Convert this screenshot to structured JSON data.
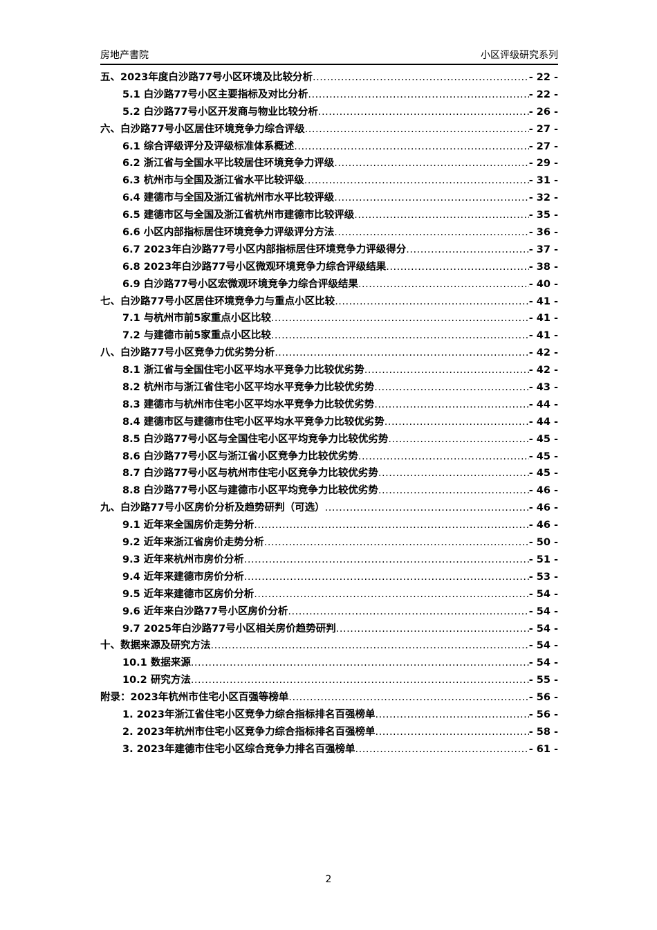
{
  "header": {
    "left": "房地产書院",
    "right": "小区评级研究系列"
  },
  "toc": [
    {
      "level": 1,
      "text": "五、2023年度白沙路77号小区环境及比较分析",
      "page": "- 22 -"
    },
    {
      "level": 2,
      "text": "5.1 白沙路77号小区主要指标及对比分析",
      "page": "- 22 -"
    },
    {
      "level": 2,
      "text": "5.2 白沙路77号小区开发商与物业比较分析",
      "page": "- 26 -"
    },
    {
      "level": 1,
      "text": "六、白沙路77号小区居住环境竞争力综合评级",
      "page": "- 27 -"
    },
    {
      "level": 2,
      "text": "6.1 综合评级评分及评级标准体系概述",
      "page": "- 27 -"
    },
    {
      "level": 2,
      "text": "6.2 浙江省与全国水平比较居住环境竞争力评级",
      "page": "- 29 -"
    },
    {
      "level": 2,
      "text": "6.3 杭州市与全国及浙江省水平比较评级",
      "page": "- 31 -"
    },
    {
      "level": 2,
      "text": "6.4 建德市与全国及浙江省杭州市水平比较评级",
      "page": "- 32 -"
    },
    {
      "level": 2,
      "text": "6.5 建德市区与全国及浙江省杭州市建德市比较评级",
      "page": "- 35 -"
    },
    {
      "level": 2,
      "text": "6.6 小区内部指标居住环境竞争力评级评分方法",
      "page": "- 36 -"
    },
    {
      "level": 2,
      "text": "6.7 2023年白沙路77号小区内部指标居住环境竞争力评级得分",
      "page": "- 37 -"
    },
    {
      "level": 2,
      "text": "6.8 2023年白沙路77号小区微观环境竞争力综合评级结果",
      "page": "- 38 -"
    },
    {
      "level": 2,
      "text": "6.9 白沙路77号小区宏微观环境竞争力综合评级结果",
      "page": "- 40 -"
    },
    {
      "level": 1,
      "text": "七、白沙路77号小区居住环境竞争力与重点小区比较",
      "page": "- 41 -"
    },
    {
      "level": 2,
      "text": "7.1 与杭州市前5家重点小区比较",
      "page": "- 41 -"
    },
    {
      "level": 2,
      "text": "7.2 与建德市前5家重点小区比较",
      "page": "- 41 -"
    },
    {
      "level": 1,
      "text": "八、白沙路77号小区竞争力优劣势分析",
      "page": "- 42 -"
    },
    {
      "level": 2,
      "text": "8.1 浙江省与全国住宅小区平均水平竞争力比较优劣势",
      "page": "- 42 -"
    },
    {
      "level": 2,
      "text": "8.2 杭州市与浙江省住宅小区平均水平竞争力比较优劣势",
      "page": "- 43 -"
    },
    {
      "level": 2,
      "text": "8.3 建德市与杭州市住宅小区平均水平竞争力比较优劣势",
      "page": "- 44 -"
    },
    {
      "level": 2,
      "text": "8.4 建德市区与建德市住宅小区平均水平竞争力比较优劣势",
      "page": "- 44 -"
    },
    {
      "level": 2,
      "text": "8.5 白沙路77号小区与全国住宅小区平均竞争力比较优劣势",
      "page": "- 45 -"
    },
    {
      "level": 2,
      "text": "8.6 白沙路77号小区与浙江省小区竞争力比较优劣势",
      "page": "- 45 -"
    },
    {
      "level": 2,
      "text": "8.7 白沙路77号小区与杭州市住宅小区竞争力比较优劣势",
      "page": "- 45 -"
    },
    {
      "level": 2,
      "text": "8.8 白沙路77号小区与建德市小区平均竞争力比较优劣势",
      "page": "- 46 -"
    },
    {
      "level": 1,
      "text": "九、白沙路77号小区房价分析及趋势研判（可选）",
      "page": "- 46 -"
    },
    {
      "level": 2,
      "text": "9.1 近年来全国房价走势分析",
      "page": "- 46 -"
    },
    {
      "level": 2,
      "text": "9.2 近年来浙江省房价走势分析",
      "page": "- 50 -"
    },
    {
      "level": 2,
      "text": "9.3 近年来杭州市房价分析",
      "page": "- 51 -"
    },
    {
      "level": 2,
      "text": "9.4 近年来建德市房价分析",
      "page": "- 53 -"
    },
    {
      "level": 2,
      "text": "9.5 近年来建德市区房价分析",
      "page": "- 54 -"
    },
    {
      "level": 2,
      "text": "9.6 近年来白沙路77号小区房价分析",
      "page": "- 54 -"
    },
    {
      "level": 2,
      "text": "9.7 2025年白沙路77号小区相关房价趋势研判",
      "page": "- 54 -"
    },
    {
      "level": 1,
      "text": "十、数据来源及研究方法",
      "page": "- 54 -"
    },
    {
      "level": 2,
      "text": "10.1 数据来源",
      "page": "- 54 -"
    },
    {
      "level": 2,
      "text": "10.2 研究方法",
      "page": "- 55 -"
    },
    {
      "level": 1,
      "text": "附录：2023年杭州市住宅小区百强等榜单",
      "page": "- 56 -"
    },
    {
      "level": 2,
      "text": "1.  2023年浙江省住宅小区竞争力综合指标排名百强榜单",
      "page": "- 56 -"
    },
    {
      "level": 2,
      "text": "2.  2023年杭州市住宅小区竞争力综合指标排名百强榜单",
      "page": "- 58 -"
    },
    {
      "level": 2,
      "text": "3.  2023年建德市住宅小区综合竞争力排名百强榜单",
      "page": "- 61 -"
    }
  ],
  "footer": {
    "page_number": "2"
  }
}
